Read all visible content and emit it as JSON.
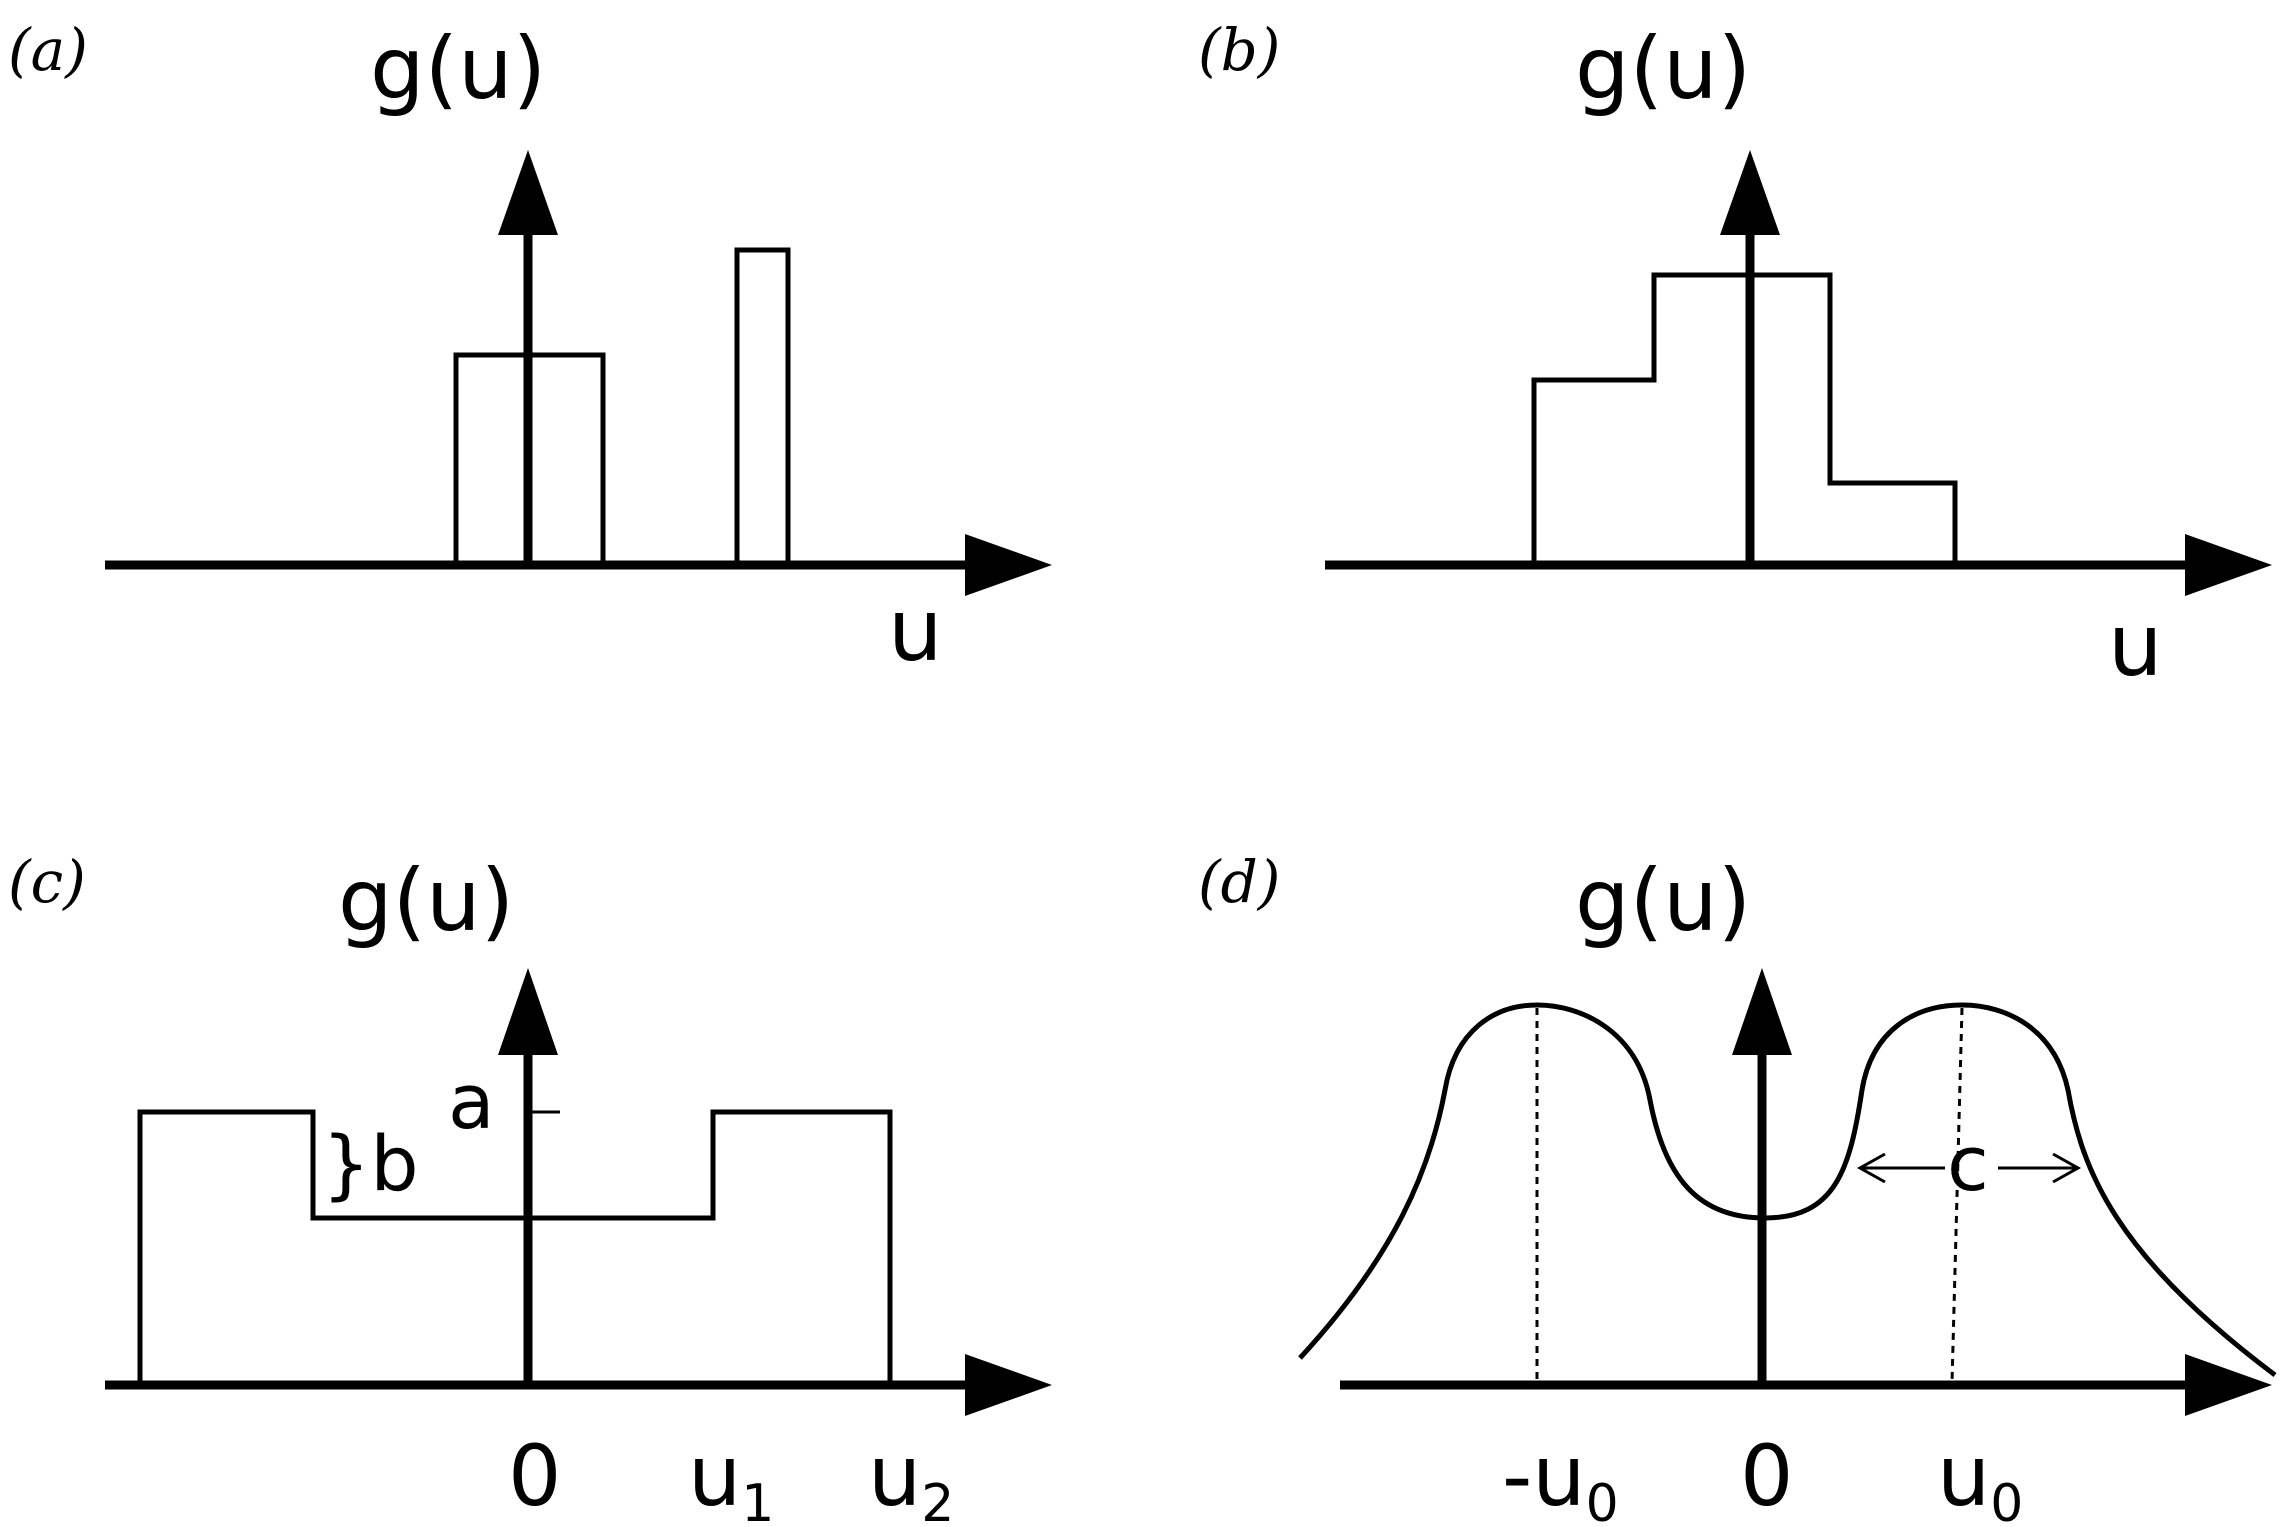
{
  "panels": {
    "a": {
      "tag": "(a)",
      "ylabel": "g(u)",
      "xlabel": "u"
    },
    "b": {
      "tag": "(b)",
      "ylabel": "g(u)",
      "xlabel": "u"
    },
    "c": {
      "tag": "(c)",
      "ylabel": "g(u)",
      "label_a": "a",
      "label_b": "}b",
      "tick_0": "0",
      "tick_u1": "u",
      "tick_u1_sub": "1",
      "tick_u2": "u",
      "tick_u2_sub": "2"
    },
    "d": {
      "tag": "(d)",
      "ylabel": "g(u)",
      "label_c": "c",
      "tick_neg_u0": "-u",
      "tick_neg_u0_sub": "0",
      "tick_0": "0",
      "tick_u0": "u",
      "tick_u0_sub": "0"
    }
  }
}
